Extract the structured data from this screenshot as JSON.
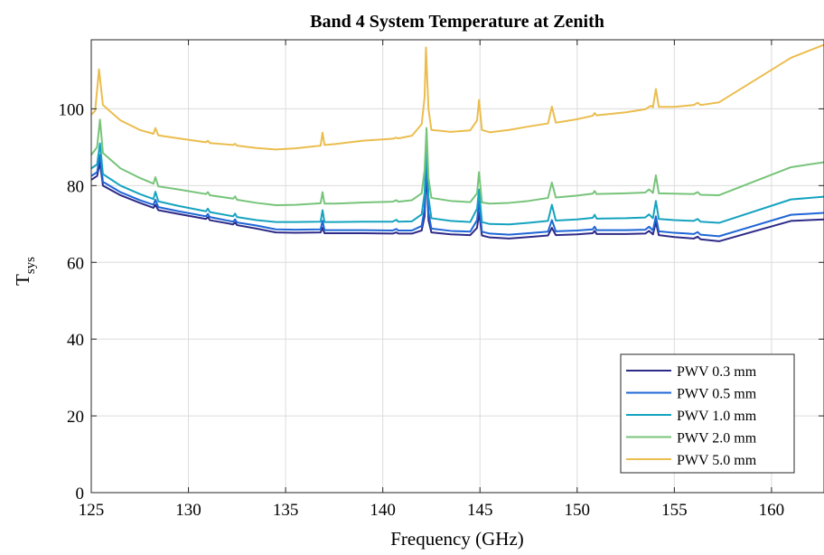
{
  "chart_data": {
    "type": "line",
    "title": "Band 4 System Temperature at Zenith",
    "xlabel": "Frequency (GHz)",
    "ylabel": "T",
    "ylabel_subscript": "sys",
    "xlim": [
      125,
      162.7
    ],
    "ylim": [
      0,
      118
    ],
    "xticks": [
      125,
      130,
      135,
      140,
      145,
      150,
      155,
      160
    ],
    "yticks": [
      0,
      20,
      40,
      60,
      80,
      100
    ],
    "grid": true,
    "legend_position": "bottom-right",
    "series": [
      {
        "name": "PWV 0.3 mm",
        "color": "#2e2a87",
        "points": [
          [
            125,
            81.5
          ],
          [
            125.3,
            82.5
          ],
          [
            125.45,
            86
          ],
          [
            125.6,
            80
          ],
          [
            126.5,
            77.5
          ],
          [
            127.5,
            75.5
          ],
          [
            128.2,
            74.2
          ],
          [
            128.3,
            75
          ],
          [
            128.45,
            73.6
          ],
          [
            129.5,
            72.6
          ],
          [
            130.9,
            71.3
          ],
          [
            131,
            71.8
          ],
          [
            131.1,
            71
          ],
          [
            132.3,
            69.9
          ],
          [
            132.4,
            70.4
          ],
          [
            132.5,
            69.7
          ],
          [
            133.5,
            68.8
          ],
          [
            134.5,
            67.8
          ],
          [
            135.5,
            67.7
          ],
          [
            136.8,
            67.8
          ],
          [
            136.9,
            69
          ],
          [
            137,
            67.6
          ],
          [
            137.5,
            67.6
          ],
          [
            139,
            67.6
          ],
          [
            140.5,
            67.5
          ],
          [
            140.7,
            67.8
          ],
          [
            140.8,
            67.5
          ],
          [
            141.5,
            67.5
          ],
          [
            142.0,
            68.3
          ],
          [
            142.15,
            72
          ],
          [
            142.25,
            85
          ],
          [
            142.35,
            71
          ],
          [
            142.5,
            67.8
          ],
          [
            143.5,
            67.3
          ],
          [
            144.5,
            67.1
          ],
          [
            144.85,
            69
          ],
          [
            144.95,
            73
          ],
          [
            145.1,
            67
          ],
          [
            145.5,
            66.5
          ],
          [
            146.5,
            66.2
          ],
          [
            147.5,
            66.6
          ],
          [
            148.5,
            67.0
          ],
          [
            148.7,
            69
          ],
          [
            148.9,
            67.1
          ],
          [
            150,
            67.3
          ],
          [
            150.8,
            67.6
          ],
          [
            150.9,
            68.2
          ],
          [
            151.0,
            67.4
          ],
          [
            152.5,
            67.4
          ],
          [
            153.5,
            67.5
          ],
          [
            153.7,
            68.2
          ],
          [
            153.9,
            67.3
          ],
          [
            154.05,
            70.5
          ],
          [
            154.2,
            67.1
          ],
          [
            155,
            66.6
          ],
          [
            156,
            66.2
          ],
          [
            156.2,
            66.7
          ],
          [
            156.35,
            66.0
          ],
          [
            157.3,
            65.5
          ],
          [
            161,
            70.8
          ],
          [
            162.7,
            71.2
          ]
        ]
      },
      {
        "name": "PWV 0.5 mm",
        "color": "#1f66d6",
        "points": [
          [
            125,
            82.5
          ],
          [
            125.3,
            83.5
          ],
          [
            125.45,
            88
          ],
          [
            125.6,
            81
          ],
          [
            126.5,
            78.3
          ],
          [
            127.5,
            76.2
          ],
          [
            128.2,
            75.0
          ],
          [
            128.3,
            76.3
          ],
          [
            128.45,
            74.4
          ],
          [
            129.5,
            73.3
          ],
          [
            130.9,
            72.0
          ],
          [
            131,
            72.6
          ],
          [
            131.1,
            71.8
          ],
          [
            132.3,
            70.6
          ],
          [
            132.4,
            71.2
          ],
          [
            132.5,
            70.4
          ],
          [
            133.5,
            69.6
          ],
          [
            134.5,
            68.6
          ],
          [
            135.5,
            68.5
          ],
          [
            136.8,
            68.6
          ],
          [
            136.9,
            70.8
          ],
          [
            137,
            68.4
          ],
          [
            137.5,
            68.4
          ],
          [
            139,
            68.4
          ],
          [
            140.5,
            68.3
          ],
          [
            140.7,
            68.7
          ],
          [
            140.8,
            68.3
          ],
          [
            141.5,
            68.3
          ],
          [
            142.0,
            69.5
          ],
          [
            142.15,
            74
          ],
          [
            142.25,
            88
          ],
          [
            142.35,
            73
          ],
          [
            142.5,
            68.8
          ],
          [
            143.5,
            68.2
          ],
          [
            144.5,
            68.0
          ],
          [
            144.85,
            71
          ],
          [
            144.95,
            76
          ],
          [
            145.1,
            68
          ],
          [
            145.5,
            67.5
          ],
          [
            146.5,
            67.2
          ],
          [
            147.5,
            67.6
          ],
          [
            148.5,
            68.0
          ],
          [
            148.7,
            71
          ],
          [
            148.9,
            68.1
          ],
          [
            150,
            68.3
          ],
          [
            150.8,
            68.6
          ],
          [
            150.9,
            69.3
          ],
          [
            151.0,
            68.4
          ],
          [
            152.5,
            68.4
          ],
          [
            153.5,
            68.5
          ],
          [
            153.7,
            69.3
          ],
          [
            153.9,
            68.3
          ],
          [
            154.05,
            72
          ],
          [
            154.2,
            68.1
          ],
          [
            155,
            67.7
          ],
          [
            156,
            67.4
          ],
          [
            156.2,
            67.9
          ],
          [
            156.35,
            67.2
          ],
          [
            157.3,
            66.8
          ],
          [
            161,
            72.4
          ],
          [
            162.7,
            72.9
          ]
        ]
      },
      {
        "name": "PWV 1.0 mm",
        "color": "#15a3bf",
        "points": [
          [
            125,
            84.5
          ],
          [
            125.3,
            85.5
          ],
          [
            125.45,
            91
          ],
          [
            125.6,
            83
          ],
          [
            126.5,
            80.0
          ],
          [
            127.5,
            77.8
          ],
          [
            128.2,
            76.5
          ],
          [
            128.3,
            78.4
          ],
          [
            128.45,
            75.9
          ],
          [
            129.5,
            74.7
          ],
          [
            130.9,
            73.3
          ],
          [
            131,
            74.0
          ],
          [
            131.1,
            73.1
          ],
          [
            132.3,
            72.0
          ],
          [
            132.4,
            72.7
          ],
          [
            132.5,
            71.8
          ],
          [
            133.5,
            71.0
          ],
          [
            134.5,
            70.5
          ],
          [
            135.5,
            70.5
          ],
          [
            136.8,
            70.6
          ],
          [
            136.9,
            73.6
          ],
          [
            137,
            70.5
          ],
          [
            137.5,
            70.5
          ],
          [
            139,
            70.6
          ],
          [
            140.5,
            70.6
          ],
          [
            140.7,
            71.1
          ],
          [
            140.8,
            70.6
          ],
          [
            141.5,
            70.7
          ],
          [
            142.0,
            72.5
          ],
          [
            142.15,
            78
          ],
          [
            142.25,
            92
          ],
          [
            142.35,
            77
          ],
          [
            142.5,
            71.5
          ],
          [
            143.5,
            70.8
          ],
          [
            144.5,
            70.5
          ],
          [
            144.85,
            74
          ],
          [
            144.95,
            79
          ],
          [
            145.1,
            70.5
          ],
          [
            145.5,
            70.0
          ],
          [
            146.5,
            69.9
          ],
          [
            147.5,
            70.3
          ],
          [
            148.5,
            70.8
          ],
          [
            148.7,
            75
          ],
          [
            148.9,
            70.9
          ],
          [
            150,
            71.2
          ],
          [
            150.8,
            71.6
          ],
          [
            150.9,
            72.4
          ],
          [
            151.0,
            71.4
          ],
          [
            152.5,
            71.5
          ],
          [
            153.5,
            71.7
          ],
          [
            153.7,
            72.5
          ],
          [
            153.9,
            71.5
          ],
          [
            154.05,
            76
          ],
          [
            154.2,
            71.3
          ],
          [
            155,
            71.0
          ],
          [
            156,
            70.8
          ],
          [
            156.2,
            71.3
          ],
          [
            156.35,
            70.6
          ],
          [
            157.3,
            70.3
          ],
          [
            161,
            76.4
          ],
          [
            162.7,
            77.1
          ]
        ]
      },
      {
        "name": "PWV 2.0 mm",
        "color": "#77c47a",
        "points": [
          [
            125,
            88
          ],
          [
            125.3,
            90
          ],
          [
            125.45,
            97.2
          ],
          [
            125.6,
            88.5
          ],
          [
            126.5,
            84.5
          ],
          [
            127.5,
            82.0
          ],
          [
            128.2,
            80.5
          ],
          [
            128.3,
            82.2
          ],
          [
            128.45,
            79.8
          ],
          [
            129.5,
            79.0
          ],
          [
            130.9,
            77.8
          ],
          [
            131,
            78.3
          ],
          [
            131.1,
            77.5
          ],
          [
            132.3,
            76.6
          ],
          [
            132.4,
            77.2
          ],
          [
            132.5,
            76.3
          ],
          [
            133.5,
            75.5
          ],
          [
            134.5,
            74.9
          ],
          [
            135.5,
            75.0
          ],
          [
            136.8,
            75.4
          ],
          [
            136.9,
            78.3
          ],
          [
            137,
            75.3
          ],
          [
            137.5,
            75.3
          ],
          [
            139,
            75.6
          ],
          [
            140.5,
            75.8
          ],
          [
            140.7,
            76.2
          ],
          [
            140.8,
            75.8
          ],
          [
            141.5,
            76.2
          ],
          [
            142.0,
            78
          ],
          [
            142.15,
            84
          ],
          [
            142.25,
            95
          ],
          [
            142.35,
            82
          ],
          [
            142.5,
            76.8
          ],
          [
            143.5,
            76.0
          ],
          [
            144.5,
            75.7
          ],
          [
            144.85,
            78
          ],
          [
            144.95,
            83.5
          ],
          [
            145.1,
            75.6
          ],
          [
            145.5,
            75.3
          ],
          [
            146.5,
            75.5
          ],
          [
            147.5,
            76.0
          ],
          [
            148.5,
            76.8
          ],
          [
            148.7,
            80.8
          ],
          [
            148.9,
            76.9
          ],
          [
            150,
            77.4
          ],
          [
            150.8,
            77.9
          ],
          [
            150.9,
            78.6
          ],
          [
            151.0,
            77.8
          ],
          [
            152.5,
            78.0
          ],
          [
            153.5,
            78.2
          ],
          [
            153.7,
            79.0
          ],
          [
            153.9,
            78.1
          ],
          [
            154.05,
            82.7
          ],
          [
            154.2,
            78.0
          ],
          [
            155,
            77.9
          ],
          [
            156,
            77.8
          ],
          [
            156.2,
            78.3
          ],
          [
            156.35,
            77.6
          ],
          [
            157.3,
            77.5
          ],
          [
            161,
            84.8
          ],
          [
            162.7,
            86.1
          ]
        ]
      },
      {
        "name": "PWV 5.0 mm",
        "color": "#ebbd4e",
        "points": [
          [
            125,
            98.5
          ],
          [
            125.2,
            99.5
          ],
          [
            125.4,
            110.3
          ],
          [
            125.6,
            101
          ],
          [
            126.5,
            97.0
          ],
          [
            127.5,
            94.5
          ],
          [
            128.2,
            93.5
          ],
          [
            128.3,
            95
          ],
          [
            128.45,
            93.1
          ],
          [
            129.5,
            92.3
          ],
          [
            130.9,
            91.3
          ],
          [
            131,
            91.7
          ],
          [
            131.1,
            91.1
          ],
          [
            132.3,
            90.6
          ],
          [
            132.4,
            90.9
          ],
          [
            132.5,
            90.4
          ],
          [
            133.5,
            89.8
          ],
          [
            134.5,
            89.4
          ],
          [
            135.5,
            89.7
          ],
          [
            136.8,
            90.4
          ],
          [
            136.9,
            93.8
          ],
          [
            137,
            90.6
          ],
          [
            137.5,
            90.8
          ],
          [
            139,
            91.7
          ],
          [
            140.5,
            92.2
          ],
          [
            140.7,
            92.5
          ],
          [
            140.8,
            92.3
          ],
          [
            141.5,
            93.0
          ],
          [
            142.0,
            96
          ],
          [
            142.15,
            103
          ],
          [
            142.22,
            116
          ],
          [
            142.35,
            100
          ],
          [
            142.5,
            94.5
          ],
          [
            143.5,
            94.0
          ],
          [
            144.5,
            94.4
          ],
          [
            144.85,
            97
          ],
          [
            144.95,
            102.3
          ],
          [
            145.1,
            94.5
          ],
          [
            145.5,
            93.9
          ],
          [
            146.5,
            94.5
          ],
          [
            147.5,
            95.4
          ],
          [
            148.5,
            96.2
          ],
          [
            148.7,
            100.6
          ],
          [
            148.9,
            96.4
          ],
          [
            150,
            97.3
          ],
          [
            150.8,
            98.2
          ],
          [
            150.9,
            98.9
          ],
          [
            151.0,
            98.3
          ],
          [
            152.5,
            99.1
          ],
          [
            153.5,
            99.9
          ],
          [
            153.8,
            100.8
          ],
          [
            153.9,
            100.4
          ],
          [
            154.05,
            105.2
          ],
          [
            154.2,
            100.5
          ],
          [
            155,
            100.5
          ],
          [
            156,
            101.0
          ],
          [
            156.2,
            101.6
          ],
          [
            156.35,
            101.0
          ],
          [
            157.3,
            101.7
          ],
          [
            161,
            113.3
          ],
          [
            162.7,
            116.7
          ]
        ]
      }
    ]
  }
}
